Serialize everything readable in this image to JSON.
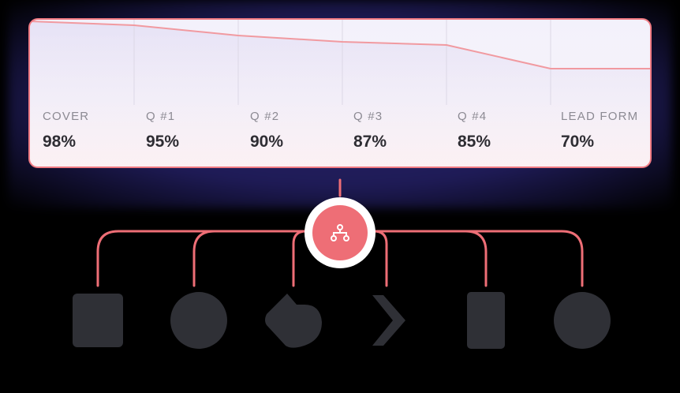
{
  "stages": [
    {
      "label": "COVER",
      "value": "98%"
    },
    {
      "label": "Q #1",
      "value": "95%"
    },
    {
      "label": "Q #2",
      "value": "90%"
    },
    {
      "label": "Q #3",
      "value": "87%"
    },
    {
      "label": "Q #4",
      "value": "85%"
    },
    {
      "label": "LEAD FORM",
      "value": "70%"
    }
  ],
  "colors": {
    "accent": "#ee6e76",
    "card_border": "#f07a82",
    "background": "#000000",
    "glow": "#2a2670",
    "icon_dark": "#2f3036"
  },
  "hub": {
    "icon": "branch-icon"
  },
  "integrations": [
    {
      "icon": "document-icon"
    },
    {
      "icon": "circle-app-icon"
    },
    {
      "icon": "leaf-app-icon"
    },
    {
      "icon": "chevron-right-icon"
    },
    {
      "icon": "tablet-icon"
    },
    {
      "icon": "round-app-icon"
    }
  ]
}
